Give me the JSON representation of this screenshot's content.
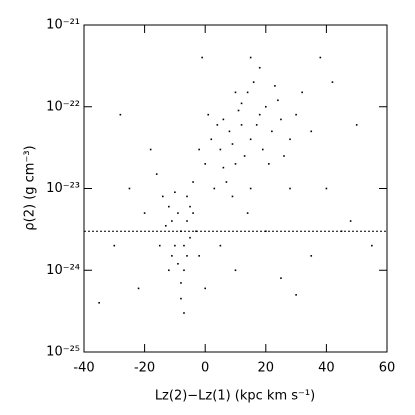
{
  "chart_data": {
    "type": "scatter",
    "xlabel": "Lz(2)−Lz(1) (kpc km s⁻¹)",
    "ylabel": "ρ(2) (g cm⁻³)",
    "xlim": [
      -40,
      60
    ],
    "xticks": [
      -40,
      -20,
      0,
      20,
      40,
      60
    ],
    "ylim": [
      1e-25,
      1e-21
    ],
    "ylog": true,
    "yticks": [
      {
        "value": 1e-25,
        "label": "10⁻²⁵"
      },
      {
        "value": 1e-24,
        "label": "10⁻²⁴"
      },
      {
        "value": 1e-23,
        "label": "10⁻²³"
      },
      {
        "value": 1e-22,
        "label": "10⁻²²"
      },
      {
        "value": 1e-21,
        "label": "10⁻²¹"
      }
    ],
    "hline": 3e-24,
    "color": "#000000",
    "x": [
      5,
      8,
      12,
      15,
      18,
      10,
      3,
      20,
      22,
      14,
      6,
      9,
      11,
      16,
      25,
      2,
      7,
      13,
      17,
      19,
      24,
      28,
      0,
      4,
      21,
      12,
      9,
      15,
      26,
      30,
      1,
      -2,
      18,
      10,
      23,
      6,
      14,
      32,
      35,
      -4,
      -8,
      -10,
      -6,
      -7,
      -9,
      -12,
      -5,
      -11,
      -8,
      -6,
      -13,
      -4,
      -9,
      -7,
      -10,
      -15,
      -3,
      -8,
      -12,
      -5,
      -14,
      -6,
      -11,
      -7,
      -2,
      -20,
      -25,
      -18,
      -30,
      -22,
      40,
      45,
      38,
      50,
      55,
      30,
      20,
      10,
      0,
      -35,
      25,
      42,
      -28,
      15,
      5,
      35,
      -16,
      48,
      28,
      -1
    ],
    "y": [
      3e-23,
      5e-23,
      6e-23,
      4e-23,
      8e-23,
      2e-23,
      1e-23,
      1e-22,
      5e-23,
      1.5e-22,
      7e-23,
      3.5e-23,
      9e-23,
      2e-22,
      7e-23,
      4e-23,
      1.2e-23,
      2.5e-23,
      6e-23,
      3e-23,
      1.2e-22,
      4e-23,
      2e-23,
      6e-23,
      2e-23,
      1.1e-22,
      8e-24,
      1e-23,
      2.5e-23,
      8e-23,
      8e-23,
      3e-23,
      3e-22,
      1.5e-22,
      1.8e-22,
      1.8e-23,
      5e-24,
      1.5e-22,
      5e-23,
      1.2e-23,
      3e-24,
      2e-24,
      4e-24,
      1e-24,
      5e-24,
      6e-24,
      2.5e-24,
      1.5e-24,
      7e-25,
      8e-24,
      3.5e-24,
      5e-24,
      1.2e-24,
      2e-24,
      9e-24,
      2e-24,
      3e-24,
      4.5e-25,
      1e-24,
      6e-24,
      8e-24,
      1.5e-24,
      4e-24,
      3e-25,
      1.5e-24,
      5e-24,
      1e-23,
      3e-23,
      2e-24,
      6e-25,
      1e-23,
      3e-24,
      4e-22,
      6e-23,
      2e-24,
      5e-25,
      3e-24,
      1e-24,
      6e-25,
      4e-25,
      8e-25,
      2e-22,
      8e-23,
      4e-22,
      2e-24,
      1.5e-24,
      1.5e-23,
      4e-24,
      1e-23,
      4e-22
    ]
  }
}
